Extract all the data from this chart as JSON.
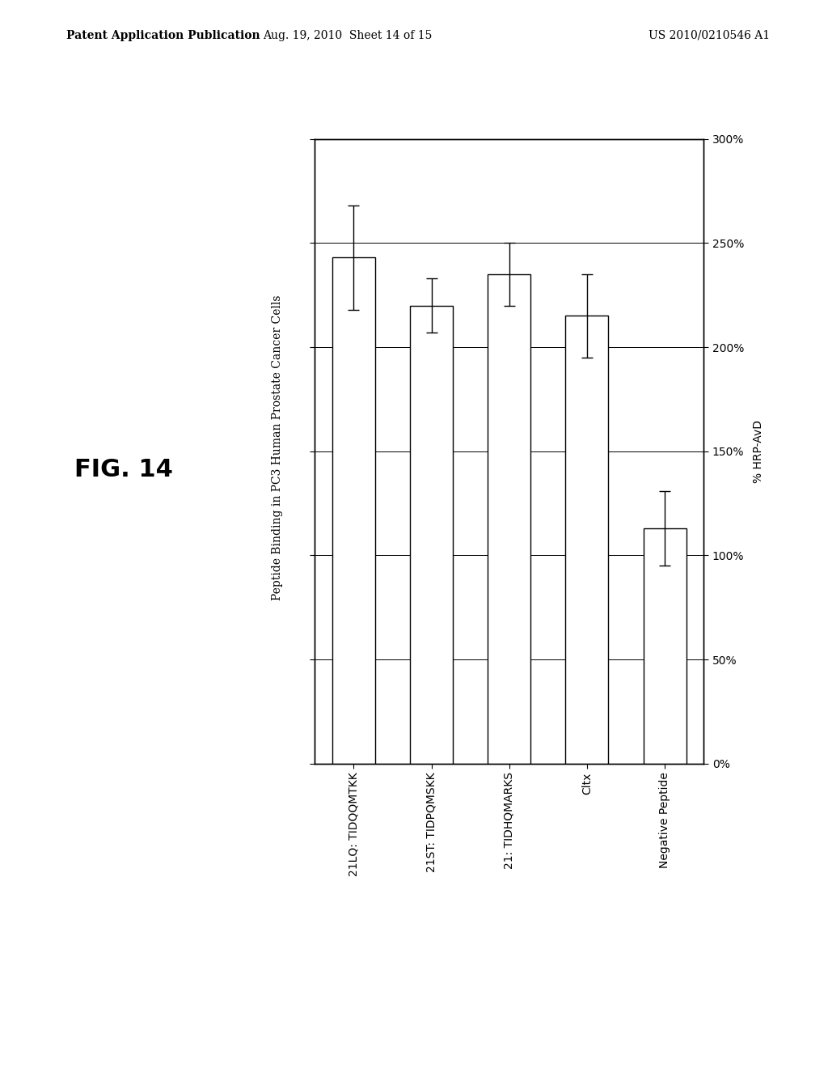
{
  "categories": [
    "21LQ: TIDQQMTKK",
    "21ST: TIDPQMSKK",
    "21: TIDHQMARKS",
    "Cltx",
    "Negative Peptide"
  ],
  "values": [
    243,
    220,
    235,
    215,
    113
  ],
  "errors": [
    25,
    13,
    15,
    20,
    18
  ],
  "bar_color": "#ffffff",
  "bar_edge_color": "#000000",
  "bar_width": 0.55,
  "ylim": [
    0,
    300
  ],
  "yticks": [
    0,
    50,
    100,
    150,
    200,
    250,
    300
  ],
  "yticklabels": [
    "0%",
    "50%",
    "100%",
    "150%",
    "200%",
    "250%",
    "300%"
  ],
  "ylabel": "% HRP-AvD",
  "chart_title": "Peptide Binding in PC3 Human Prostate Cancer Cells",
  "fig_label": "FIG. 14",
  "patent_left": "Patent Application Publication",
  "patent_center": "Aug. 19, 2010  Sheet 14 of 15",
  "patent_right": "US 2010/0210546 A1",
  "background_color": "#ffffff",
  "grid_color": "#000000",
  "chart_title_fontsize": 10,
  "fig_label_fontsize": 22,
  "axis_label_fontsize": 10,
  "tick_fontsize": 10,
  "patent_fontsize": 10
}
